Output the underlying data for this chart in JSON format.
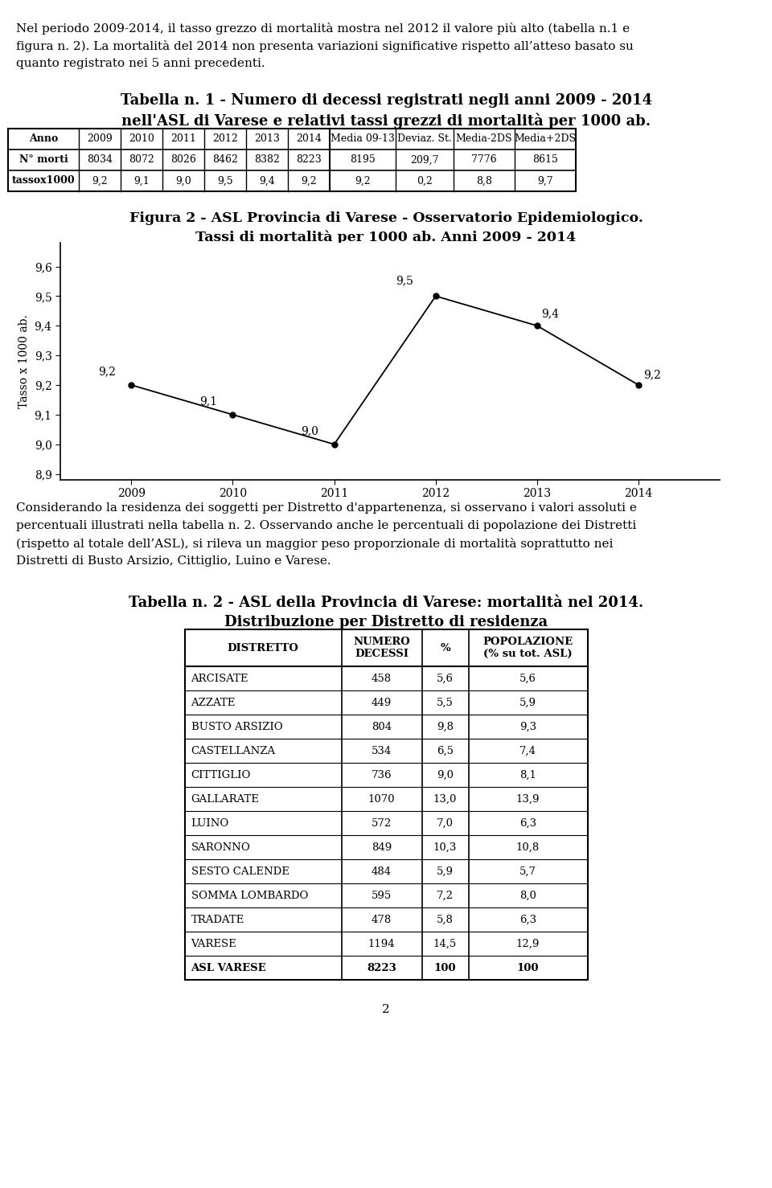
{
  "intro_text_lines": [
    "Nel periodo 2009-2014, il tasso grezzo di mortalità mostra nel 2012 il valore più alto (tabella n.1 e",
    "figura n. 2). La mortalità del 2014 non presenta variazioni significative rispetto all’atteso basato su",
    "quanto registrato nei 5 anni precedenti."
  ],
  "table1_title_line1": "Tabella n. 1 - Numero di decessi registrati negli anni 2009 - 2014",
  "table1_title_line2": "nell'ASL di Varese e relativi tassi grezzi di mortalità per 1000 ab.",
  "table1_headers": [
    "Anno",
    "2009",
    "2010",
    "2011",
    "2012",
    "2013",
    "2014",
    "Media 09-13",
    "Deviaz. St.",
    "Media-2DS",
    "Media+2DS"
  ],
  "table1_row1_label": "N° morti",
  "table1_row1_values": [
    "8034",
    "8072",
    "8026",
    "8462",
    "8382",
    "8223",
    "8195",
    "209,7",
    "7776",
    "8615"
  ],
  "table1_row2_label": "tassox1000",
  "table1_row2_values": [
    "9,2",
    "9,1",
    "9,0",
    "9,5",
    "9,4",
    "9,2",
    "9,2",
    "0,2",
    "8,8",
    "9,7"
  ],
  "fig2_title_line1": "Figura 2 - ASL Provincia di Varese - Osservatorio Epidemiologico.",
  "fig2_title_line2": "Tassi di mortalità per 1000 ab. Anni 2009 - 2014",
  "chart_years": [
    2009,
    2010,
    2011,
    2012,
    2013,
    2014
  ],
  "chart_values": [
    9.2,
    9.1,
    9.0,
    9.5,
    9.4,
    9.2
  ],
  "chart_ylabel": "Tasso x 1000 ab.",
  "chart_yticks": [
    8.9,
    9.0,
    9.1,
    9.2,
    9.3,
    9.4,
    9.5,
    9.6
  ],
  "chart_ytick_labels": [
    "8,9",
    "9,0",
    "9,1",
    "9,2",
    "9,3",
    "9,4",
    "9,5",
    "9,6"
  ],
  "middle_text_lines": [
    "Considerando la residenza dei soggetti per Distretto d'appartenenza, si osservano i valori assoluti e",
    "percentuali illustrati nella tabella n. 2. Osservando anche le percentuali di popolazione dei Distretti",
    "(rispetto al totale dell’ASL), si rileva un maggior peso proporzionale di mortalità soprattutto nei",
    "Distretti di Busto Arsizio, Cittiglio, Luino e Varese."
  ],
  "table2_title_line1": "Tabella n. 2 - ASL della Provincia di Varese: mortalità nel 2014.",
  "table2_title_line2": "Distribuzione per Distretto di residenza",
  "table2_col_headers": [
    "DISTRETTO",
    "NUMERO\nDECESSI",
    "%",
    "POPOLAZIONE\n(% su tot. ASL)"
  ],
  "table2_rows": [
    [
      "ARCISATE",
      "458",
      "5,6",
      "5,6"
    ],
    [
      "AZZATE",
      "449",
      "5,5",
      "5,9"
    ],
    [
      "BUSTO ARSIZIO",
      "804",
      "9,8",
      "9,3"
    ],
    [
      "CASTELLANZA",
      "534",
      "6,5",
      "7,4"
    ],
    [
      "CITTIGLIO",
      "736",
      "9,0",
      "8,1"
    ],
    [
      "GALLARATE",
      "1070",
      "13,0",
      "13,9"
    ],
    [
      "LUINO",
      "572",
      "7,0",
      "6,3"
    ],
    [
      "SARONNO",
      "849",
      "10,3",
      "10,8"
    ],
    [
      "SESTO CALENDE",
      "484",
      "5,9",
      "5,7"
    ],
    [
      "SOMMA LOMBARDO",
      "595",
      "7,2",
      "8,0"
    ],
    [
      "TRADATE",
      "478",
      "5,8",
      "6,3"
    ],
    [
      "VARESE",
      "1194",
      "14,5",
      "12,9"
    ],
    [
      "ASL VARESE",
      "8223",
      "100",
      "100"
    ]
  ],
  "page_number": "2",
  "bg_color": "#ffffff"
}
